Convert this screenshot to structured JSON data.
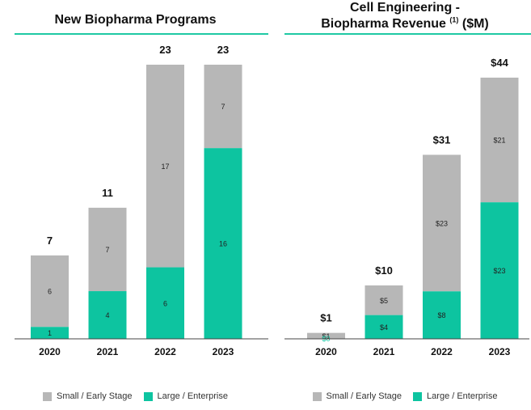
{
  "colors": {
    "small": "#b7b7b7",
    "large": "#0dc4a0",
    "rule": "#1fc9a4",
    "axis": "#444444"
  },
  "chart_data": [
    {
      "type": "bar",
      "stacked": true,
      "title": "New Biopharma Programs",
      "categories": [
        "2020",
        "2021",
        "2022",
        "2023"
      ],
      "series": [
        {
          "name": "Large / Enterprise",
          "values": [
            1,
            4,
            6,
            16
          ],
          "value_labels": [
            "1",
            "4",
            "6",
            "16"
          ]
        },
        {
          "name": "Small / Early Stage",
          "values": [
            6,
            7,
            17,
            7
          ],
          "value_labels": [
            "6",
            "7",
            "17",
            "7"
          ]
        }
      ],
      "totals": [
        7,
        11,
        23,
        23
      ],
      "total_labels": [
        "7",
        "11",
        "23",
        "23"
      ],
      "ylim": [
        0,
        23
      ],
      "grid": false,
      "legend_position": "bottom"
    },
    {
      "type": "bar",
      "stacked": true,
      "title_line1": "Cell Engineering -",
      "title_line2": "Biopharma Revenue",
      "title_sup": "(1)",
      "title_suffix": "($M)",
      "categories": [
        "2020",
        "2021",
        "2022",
        "2023"
      ],
      "series": [
        {
          "name": "Large / Enterprise",
          "values": [
            0,
            4,
            8,
            23
          ],
          "value_labels": [
            "$0",
            "$4",
            "$8",
            "$23"
          ]
        },
        {
          "name": "Small / Early Stage",
          "values": [
            1,
            5,
            23,
            21
          ],
          "value_labels": [
            "$1",
            "$5",
            "$23",
            "$21"
          ]
        }
      ],
      "totals": [
        1,
        10,
        31,
        44
      ],
      "total_labels": [
        "$1",
        "$10",
        "$31",
        "$44"
      ],
      "ylim": [
        0,
        44
      ],
      "grid": false,
      "legend_position": "bottom"
    }
  ]
}
